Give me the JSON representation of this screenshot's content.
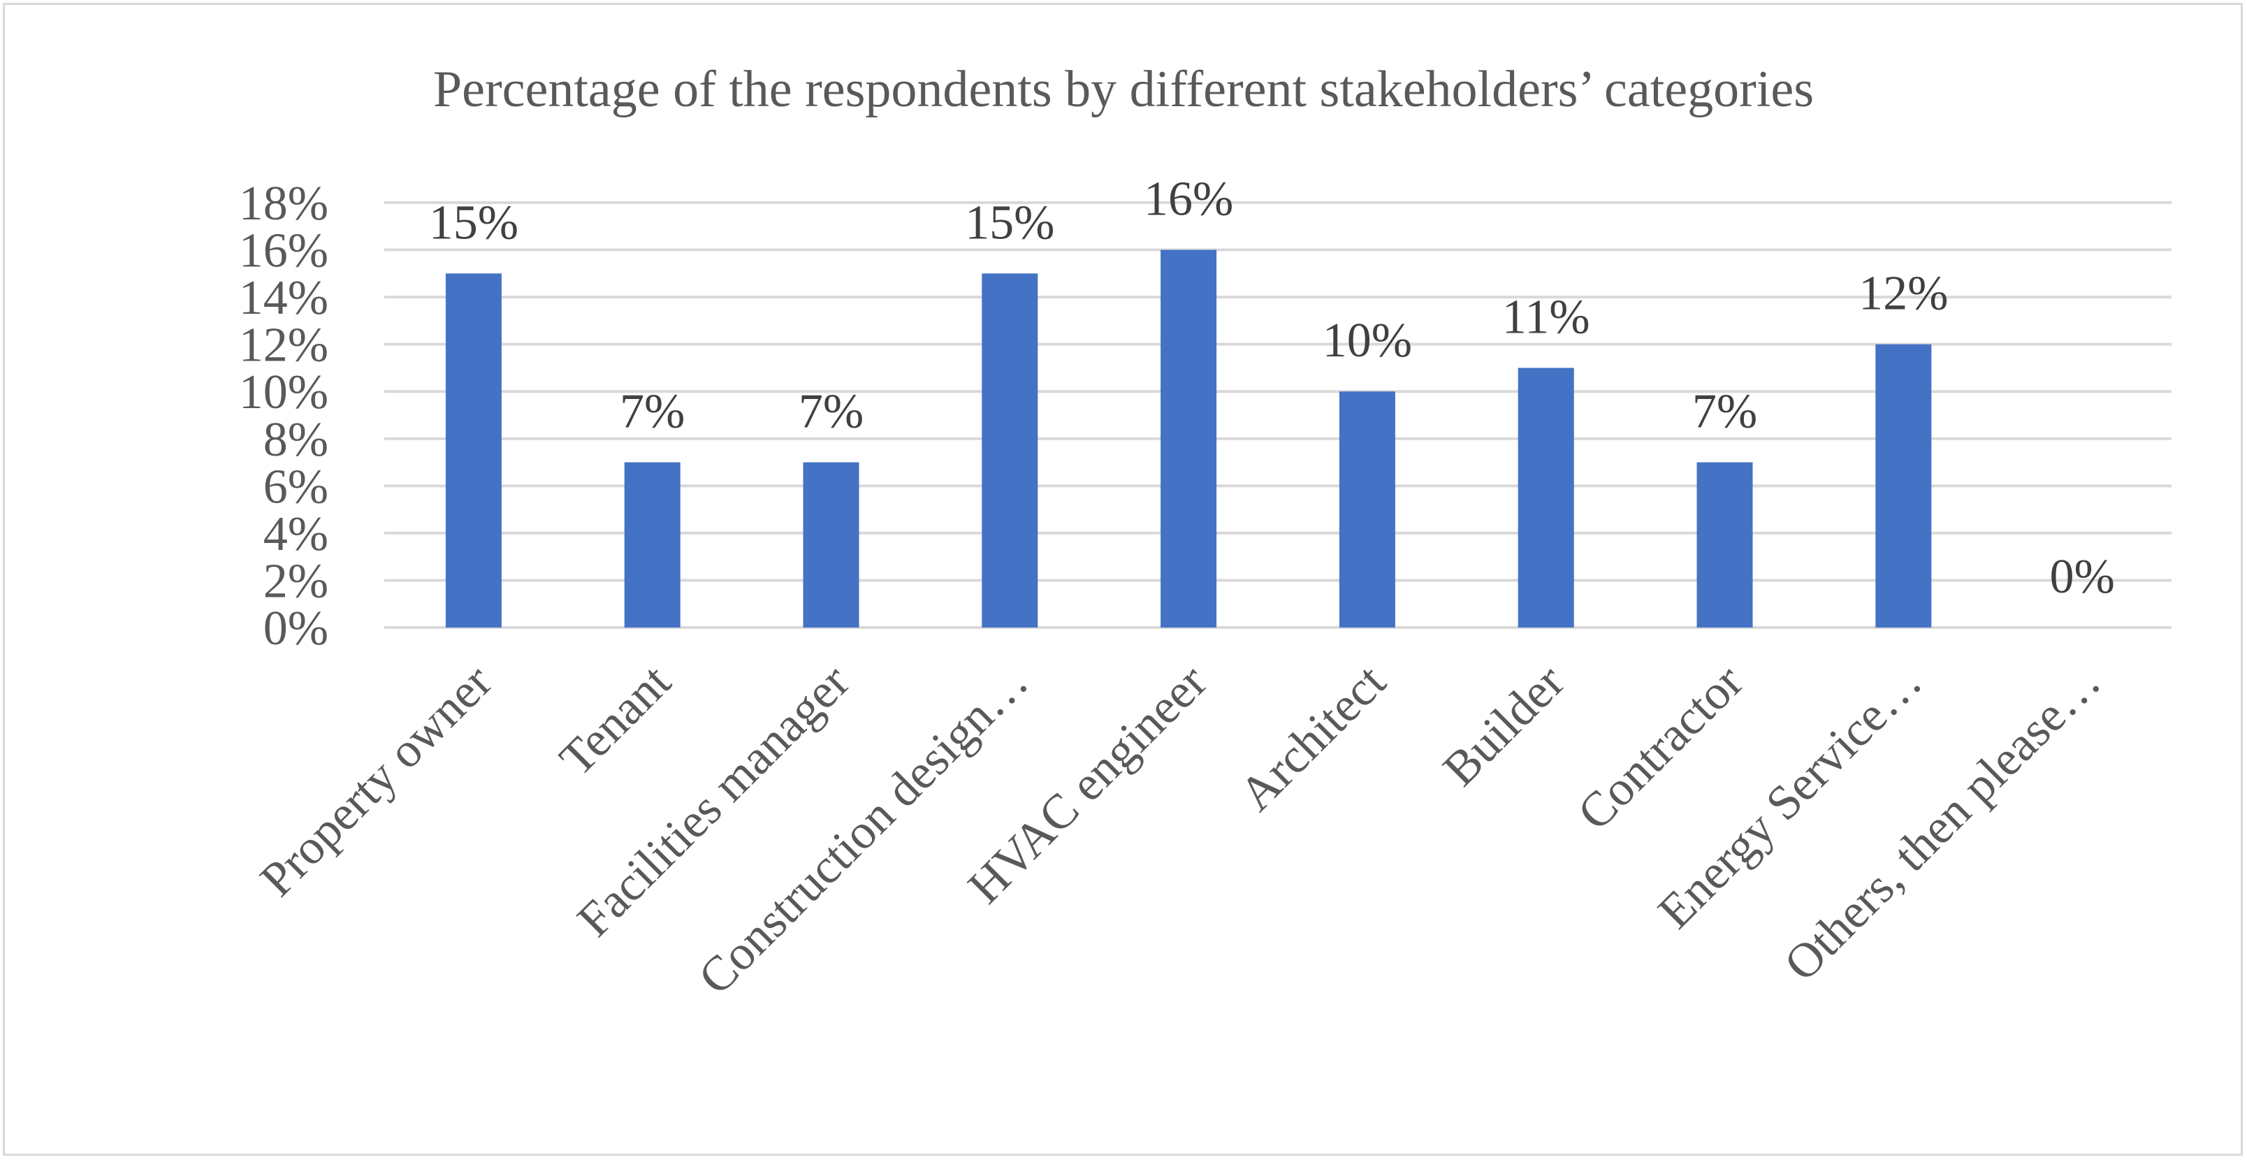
{
  "chart_data": {
    "type": "bar",
    "title": "Percentage of the respondents by different stakeholders’ categories",
    "xlabel": "",
    "ylabel": "",
    "categories": [
      "Property owner",
      "Tenant",
      "Facilities manager",
      "Construction design…",
      "HVAC engineer",
      "Architect",
      "Builder",
      "Contractor",
      "Energy Service…",
      "Others, then please…"
    ],
    "values": [
      15,
      7,
      7,
      15,
      16,
      10,
      11,
      7,
      12,
      0
    ],
    "data_labels": [
      "15%",
      "7%",
      "7%",
      "15%",
      "16%",
      "10%",
      "11%",
      "7%",
      "12%",
      "0%"
    ],
    "ylim": [
      0,
      18
    ],
    "yticks": [
      0,
      2,
      4,
      6,
      8,
      10,
      12,
      14,
      16,
      18
    ],
    "ytick_labels": [
      "0%",
      "2%",
      "4%",
      "6%",
      "8%",
      "10%",
      "12%",
      "14%",
      "16%",
      "18%"
    ],
    "grid": true,
    "legend": "none",
    "bar_color": "#4472C4",
    "grid_color": "#d9d9d9",
    "text_color": "#595959"
  }
}
